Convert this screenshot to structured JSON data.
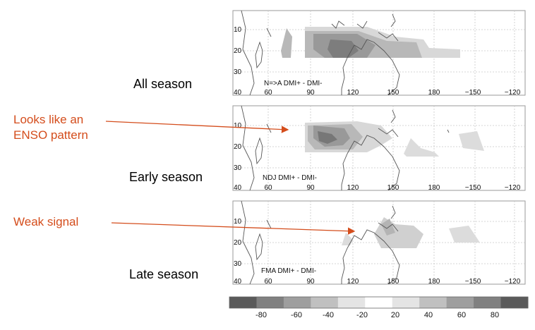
{
  "colors": {
    "annotation": "#d44d1c",
    "coast": "#555555",
    "frame": "#999999"
  },
  "panels": [
    {
      "row_label": "All season",
      "caption": "N=>A DMI+ - DMI-",
      "lat_labels": [
        "10",
        "20",
        "30"
      ],
      "lon_labels": [
        "40",
        "60",
        "90",
        "120",
        "150",
        "180",
        "−150",
        "−120"
      ]
    },
    {
      "row_label": "Early season",
      "caption": "NDJ DMI+ - DMI-",
      "lat_labels": [
        "10",
        "20",
        "30"
      ],
      "lon_labels": [
        "40",
        "60",
        "90",
        "120",
        "150",
        "180",
        "−150",
        "−120"
      ]
    },
    {
      "row_label": "Late season",
      "caption": "FMA DMI+ - DMI-",
      "lat_labels": [
        "10",
        "20",
        "30"
      ],
      "lon_labels": [
        "40",
        "60",
        "90",
        "120",
        "150",
        "180",
        "−150",
        "−120"
      ]
    }
  ],
  "annotations": {
    "enso_line1": "Looks like an",
    "enso_line2": "ENSO pattern",
    "weak": "Weak signal"
  },
  "colorbar": {
    "ticks": [
      "-80",
      "-60",
      "-40",
      "-20",
      "20",
      "40",
      "60",
      "80"
    ],
    "shades": [
      "#5a5a5a",
      "#808080",
      "#9e9e9e",
      "#c0c0c0",
      "#e4e4e4",
      "#ffffff",
      "#e4e4e4",
      "#c0c0c0",
      "#9e9e9e",
      "#808080",
      "#5a5a5a"
    ]
  }
}
